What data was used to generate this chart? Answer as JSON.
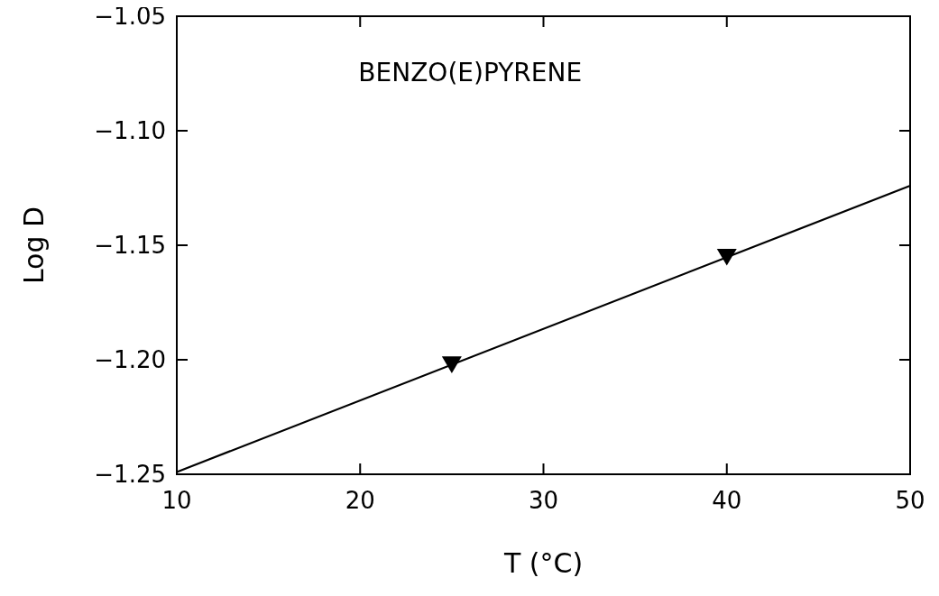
{
  "chart_data": {
    "type": "scatter",
    "title": "BENZO(E)PYRENE",
    "xlabel": "T (°C)",
    "ylabel": "Log D",
    "xlim": [
      10,
      50
    ],
    "xticks": [
      10,
      20,
      30,
      40,
      50
    ],
    "ylim": [
      -1.25,
      -1.05
    ],
    "yticks": [
      {
        "value": -1.25,
        "label": "−1.25"
      },
      {
        "value": -1.2,
        "label": "−1.20"
      },
      {
        "value": -1.15,
        "label": "−1.15"
      },
      {
        "value": -1.1,
        "label": "−1.10"
      },
      {
        "value": -1.05,
        "label": "−1.05"
      }
    ],
    "grid": false,
    "series": [
      {
        "type": "line",
        "color": "#000000",
        "x": [
          10,
          50
        ],
        "values": [
          -1.249,
          -1.124
        ],
        "line_style": "solid",
        "marker": "none"
      },
      {
        "color": "#000000",
        "x": [
          25,
          40
        ],
        "values": [
          -1.202,
          -1.155
        ],
        "marker": "triangle"
      }
    ]
  }
}
